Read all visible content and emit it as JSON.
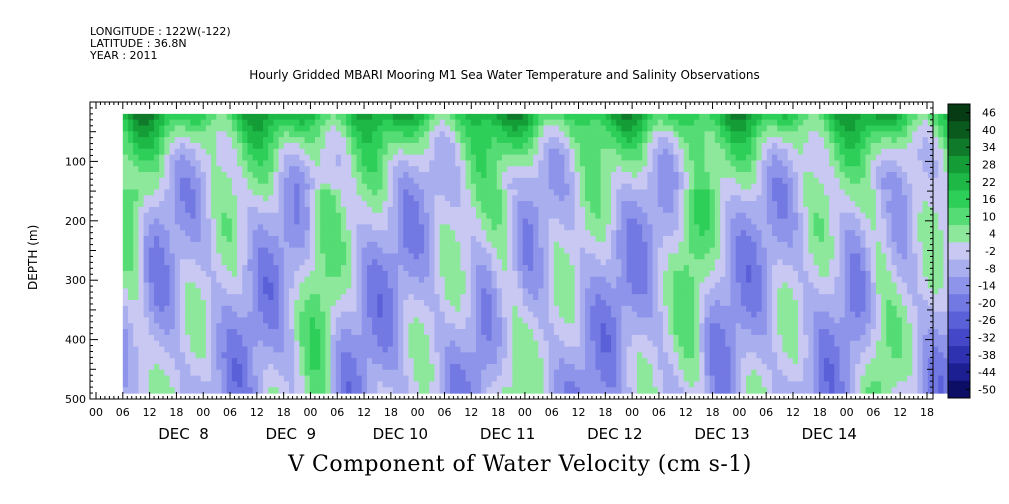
{
  "header": {
    "longitude": "LONGITUDE : 122W(-122)",
    "latitude": "LATITUDE : 36.8N",
    "year": "YEAR : 2011"
  },
  "chart_data": {
    "type": "heatmap",
    "title": "Hourly Gridded MBARI Mooring M1 Sea Water Temperature and Salinity Observations",
    "ylabel": "DEPTH (m)",
    "xlabel": "",
    "bottom_label": "V Component of Water Velocity (cm s-1)",
    "ylim": [
      500,
      0
    ],
    "y_ticks": [
      100,
      200,
      300,
      400,
      500
    ],
    "x_hour_ticks": [
      "00",
      "06",
      "12",
      "18",
      "00",
      "06",
      "12",
      "18",
      "00",
      "06",
      "12",
      "18",
      "00",
      "06",
      "12",
      "18",
      "00",
      "06",
      "12",
      "18",
      "00",
      "06",
      "12",
      "18",
      "00",
      "06",
      "12",
      "18",
      "00",
      "06",
      "12",
      "18"
    ],
    "x_day_labels": [
      "DEC  8",
      "DEC  9",
      "DEC 10",
      "DEC 11",
      "DEC 12",
      "DEC 13",
      "DEC 14"
    ],
    "colorbar": {
      "levels": [
        46,
        40,
        34,
        28,
        22,
        16,
        10,
        4,
        -2,
        -8,
        -14,
        -20,
        -26,
        -32,
        -38,
        -44,
        -50
      ],
      "colors": [
        "#063b13",
        "#0a5a1e",
        "#0f7a2a",
        "#149c37",
        "#1db846",
        "#2ecf58",
        "#55dc74",
        "#8de89c",
        "#c8c8f2",
        "#a9aeee",
        "#8d94ea",
        "#7379e2",
        "#5a60d8",
        "#4448c8",
        "#2f32b0",
        "#1c1f92",
        "#0c0e66"
      ]
    },
    "field_note_values": {
      "x_days": [
        7.25,
        15.0
      ],
      "depth_range_m": [
        20,
        490
      ]
    }
  }
}
